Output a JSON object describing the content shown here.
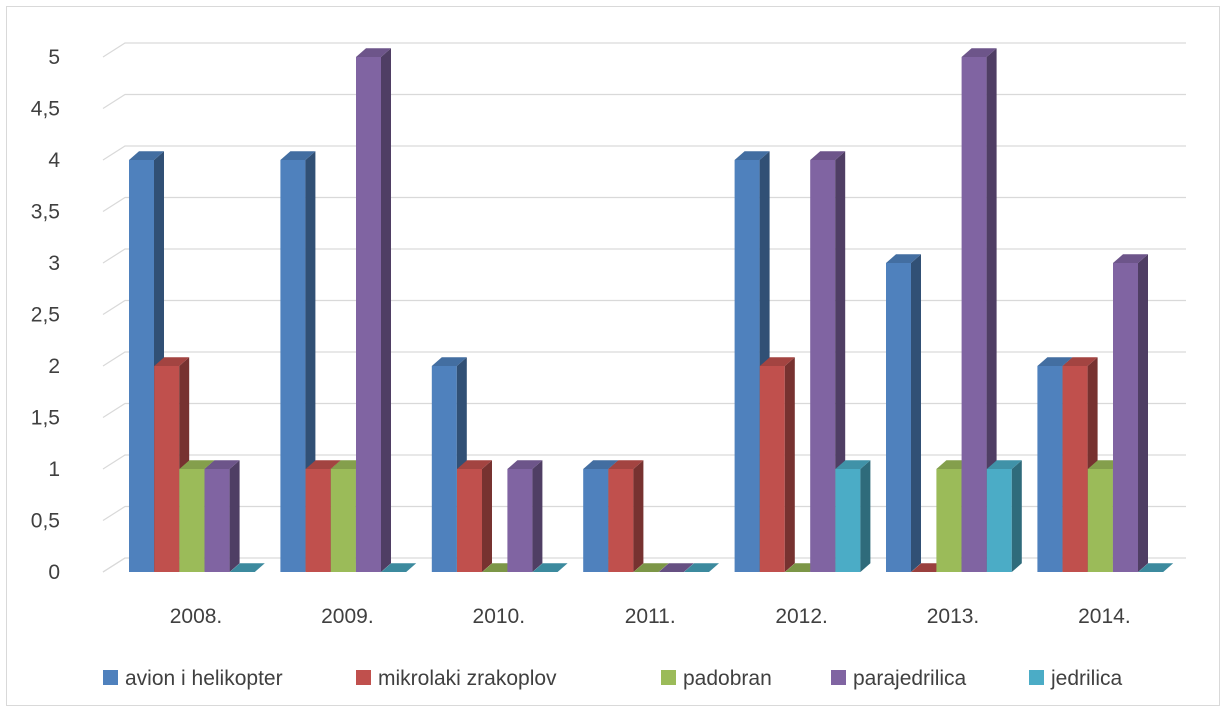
{
  "chart_data": {
    "type": "bar",
    "categories": [
      "2008.",
      "2009.",
      "2010.",
      "2011.",
      "2012.",
      "2013.",
      "2014."
    ],
    "series": [
      {
        "name": "avion i helikopter",
        "color": "#4f81bd",
        "values": [
          4,
          4,
          2,
          1,
          4,
          3,
          2
        ]
      },
      {
        "name": "mikrolaki zrakoplov",
        "color": "#c0504d",
        "values": [
          2,
          1,
          1,
          1,
          2,
          0,
          2
        ]
      },
      {
        "name": "padobran",
        "color": "#9bbb59",
        "values": [
          1,
          1,
          0,
          0,
          0,
          1,
          1
        ]
      },
      {
        "name": "parajedrilica",
        "color": "#8064a2",
        "values": [
          1,
          5,
          1,
          0,
          4,
          5,
          3
        ]
      },
      {
        "name": "jedrilica",
        "color": "#4bacc6",
        "values": [
          0,
          0,
          0,
          0,
          1,
          1,
          0
        ]
      }
    ],
    "y_ticks": [
      "0",
      "0,5",
      "1",
      "1,5",
      "2",
      "2,5",
      "3",
      "3,5",
      "4",
      "4,5",
      "5"
    ],
    "ylim": [
      0,
      5
    ],
    "grid": true,
    "style": "3d-clustered-column",
    "legend_position": "bottom"
  }
}
